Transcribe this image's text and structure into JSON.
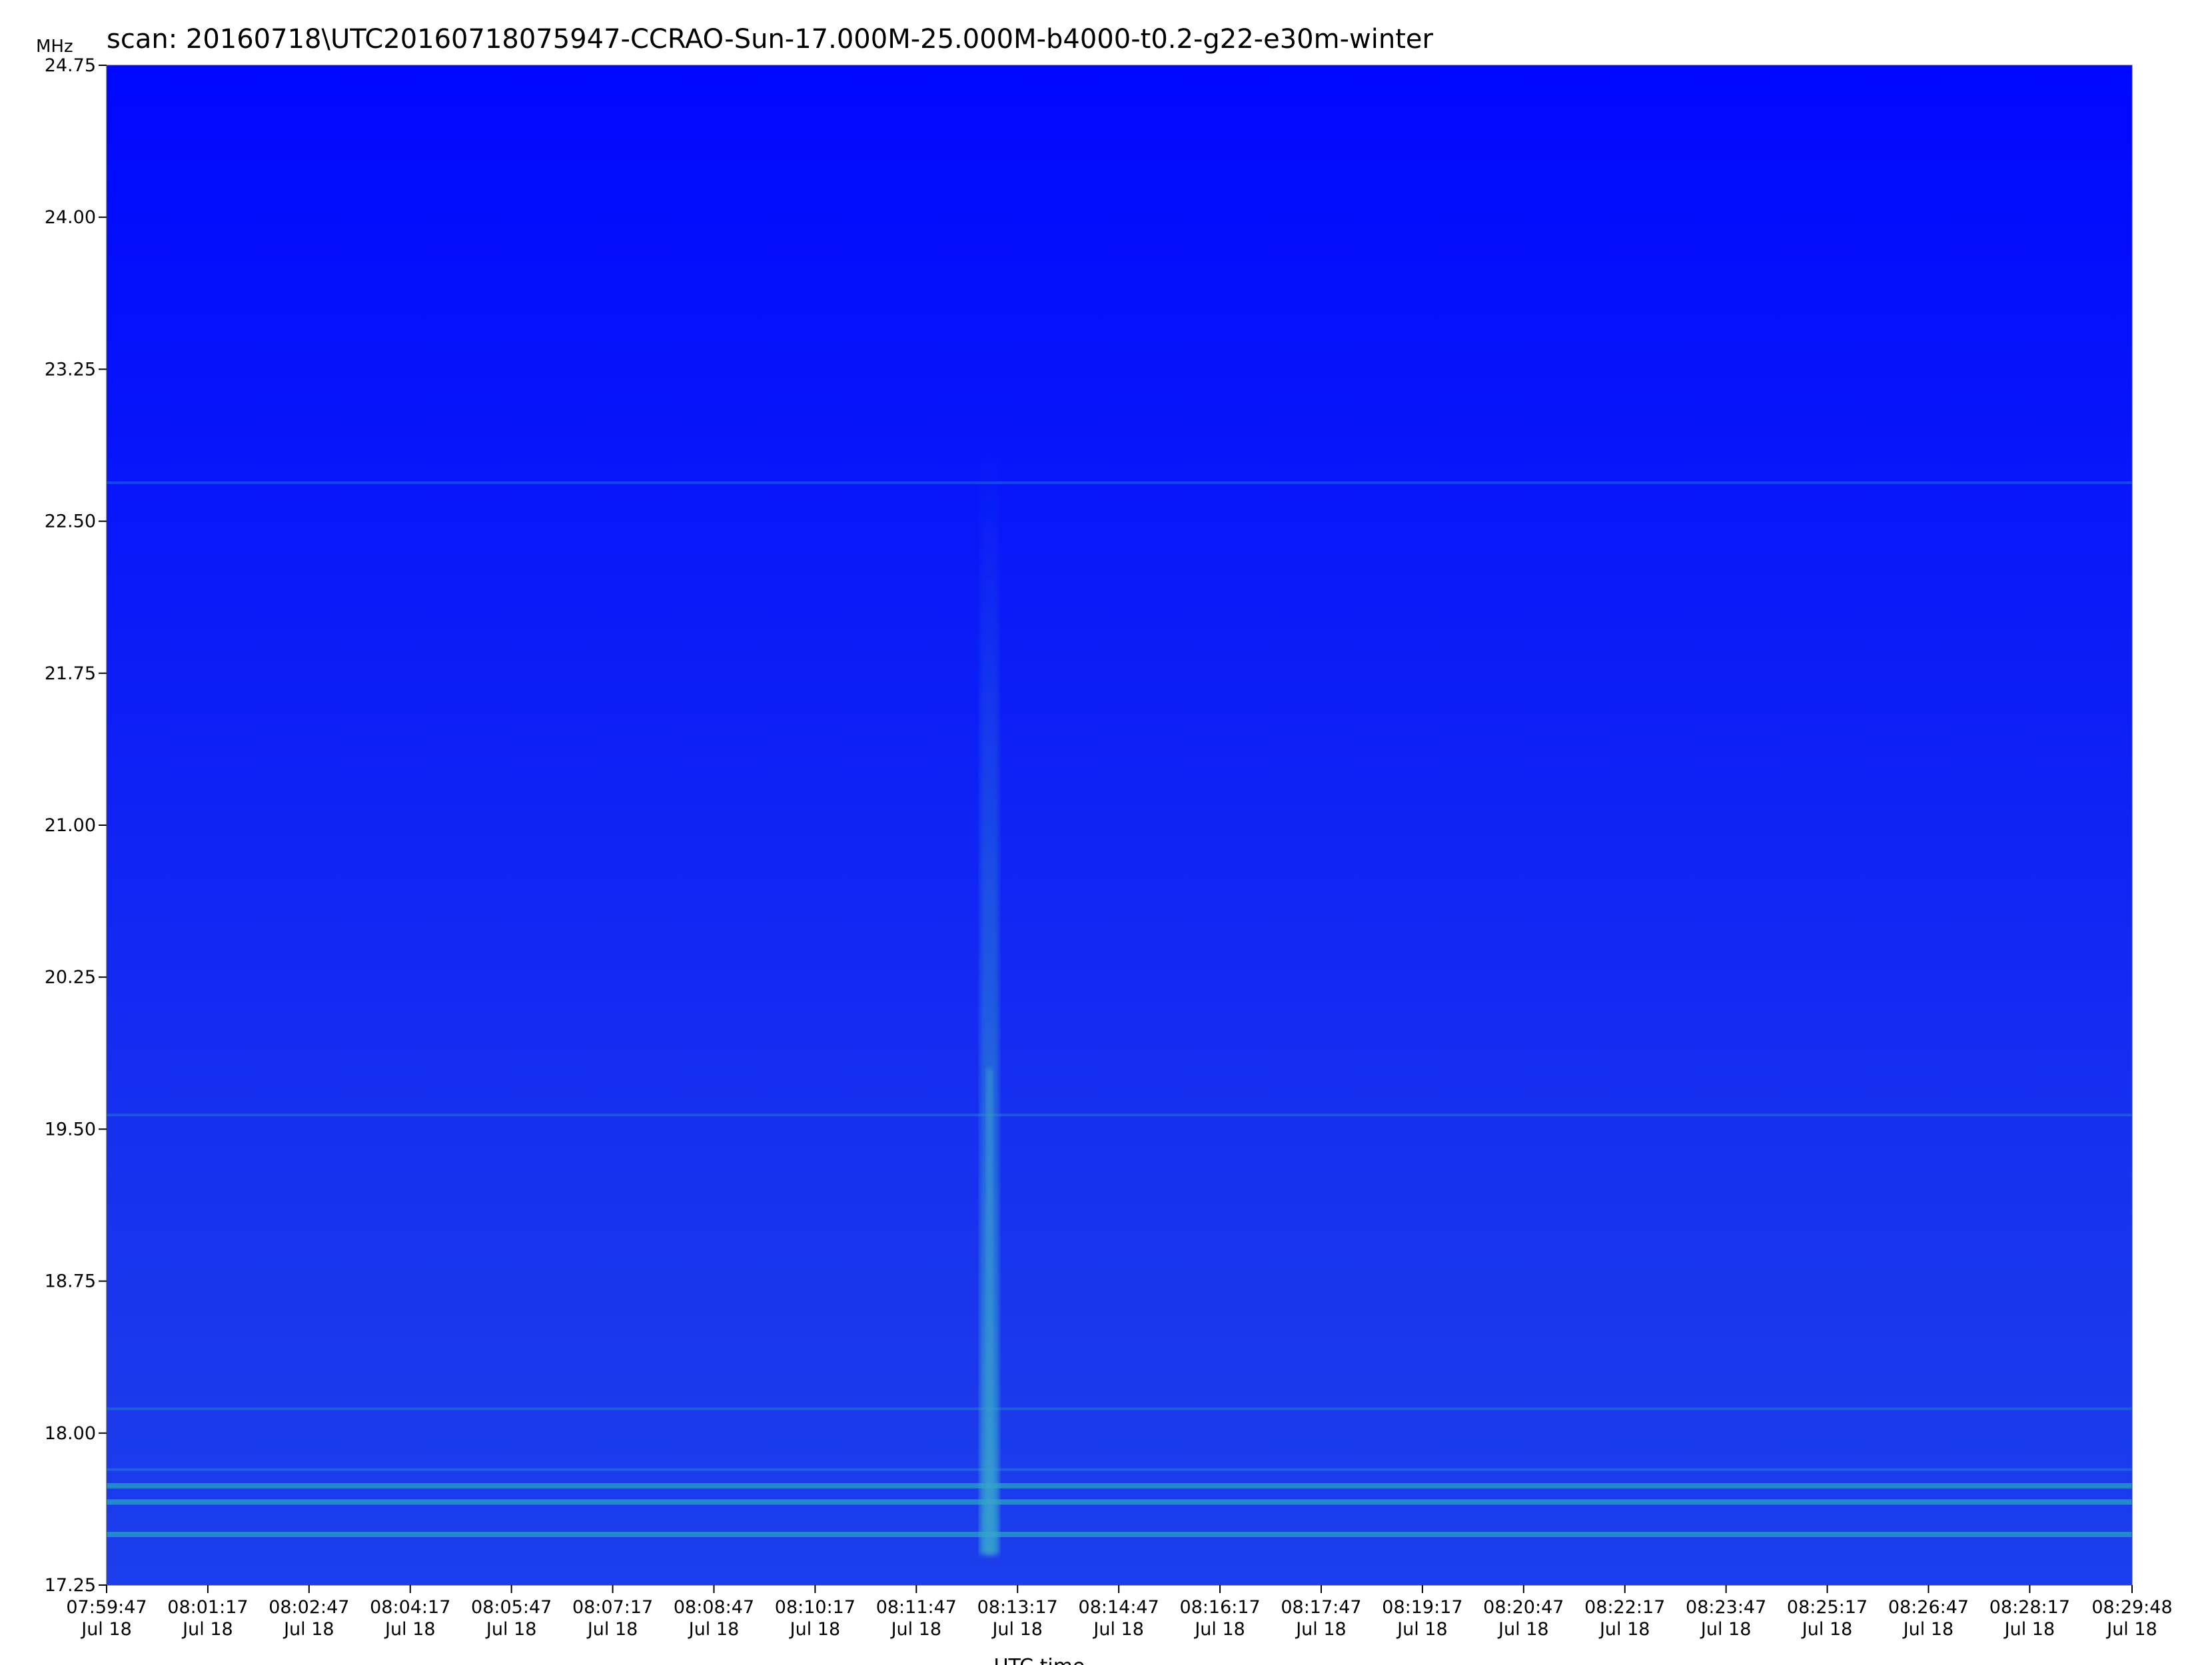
{
  "chart_data": {
    "type": "heatmap",
    "title": "scan: 20160718\\UTC20160718075947-CCRAO-Sun-17.000M-25.000M-b4000-t0.2-g22-e30m-winter",
    "xlabel": "UTC time",
    "ylabel": "MHz",
    "ylim": [
      17.25,
      24.75
    ],
    "y_ticks": [
      "17.25",
      "18.00",
      "18.75",
      "19.50",
      "20.25",
      "21.00",
      "21.75",
      "22.50",
      "23.25",
      "24.00",
      "24.75"
    ],
    "x_ticks": [
      {
        "time": "07:59:47",
        "date": "Jul 18"
      },
      {
        "time": "08:01:17",
        "date": "Jul 18"
      },
      {
        "time": "08:02:47",
        "date": "Jul 18"
      },
      {
        "time": "08:04:17",
        "date": "Jul 18"
      },
      {
        "time": "08:05:47",
        "date": "Jul 18"
      },
      {
        "time": "08:07:17",
        "date": "Jul 18"
      },
      {
        "time": "08:08:47",
        "date": "Jul 18"
      },
      {
        "time": "08:10:17",
        "date": "Jul 18"
      },
      {
        "time": "08:11:47",
        "date": "Jul 18"
      },
      {
        "time": "08:13:17",
        "date": "Jul 18"
      },
      {
        "time": "08:14:47",
        "date": "Jul 18"
      },
      {
        "time": "08:16:17",
        "date": "Jul 18"
      },
      {
        "time": "08:17:47",
        "date": "Jul 18"
      },
      {
        "time": "08:19:17",
        "date": "Jul 18"
      },
      {
        "time": "08:20:47",
        "date": "Jul 18"
      },
      {
        "time": "08:22:17",
        "date": "Jul 18"
      },
      {
        "time": "08:23:47",
        "date": "Jul 18"
      },
      {
        "time": "08:25:17",
        "date": "Jul 18"
      },
      {
        "time": "08:26:47",
        "date": "Jul 18"
      },
      {
        "time": "08:28:17",
        "date": "Jul 18"
      },
      {
        "time": "08:29:48",
        "date": "Jul 18"
      }
    ],
    "colors": {
      "background": "#0000ff",
      "low_band": "#1a3cee",
      "signal": "#28a0c8",
      "burst": "#3ca0d0"
    },
    "features": {
      "rfi_lines_mhz": [
        17.5,
        17.66,
        17.74,
        17.82,
        18.12,
        19.57,
        22.69
      ],
      "type_iii_burst": {
        "time": "08:12:52",
        "start_mhz": 17.4,
        "end_mhz": 22.9
      }
    }
  }
}
